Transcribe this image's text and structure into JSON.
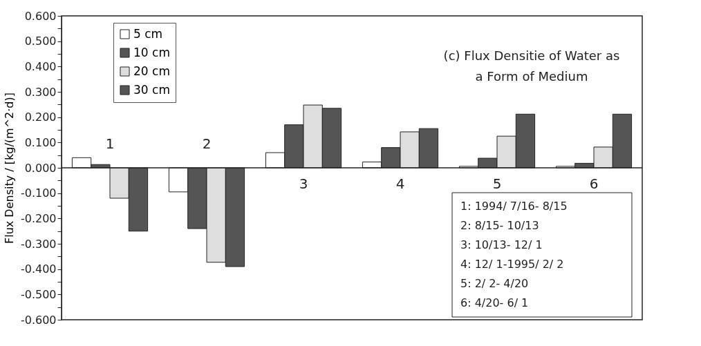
{
  "chart_data": {
    "type": "bar",
    "title": "(c) Flux Densitie of Water as a Form of Medium",
    "ylabel": "Flux Density / [kg/(m^2·d)]",
    "categories": [
      "1",
      "2",
      "3",
      "4",
      "5",
      "6"
    ],
    "series": [
      {
        "name": "5 cm",
        "color": "#ffffff",
        "values": [
          0.04,
          -0.095,
          0.06,
          0.023,
          0.006,
          0.006
        ]
      },
      {
        "name": "10 cm",
        "color": "#555555",
        "values": [
          0.013,
          -0.24,
          0.17,
          0.08,
          0.038,
          0.018
        ]
      },
      {
        "name": "20 cm",
        "color": "#dedede",
        "values": [
          -0.12,
          -0.373,
          0.248,
          0.142,
          0.125,
          0.082
        ]
      },
      {
        "name": "30 cm",
        "color": "#555555",
        "values": [
          -0.25,
          -0.39,
          0.235,
          0.155,
          0.212,
          0.212
        ]
      }
    ],
    "ylim": [
      -0.6,
      0.6
    ],
    "yticks": [
      {
        "value": -0.6,
        "label": "-0.600"
      },
      {
        "value": -0.55,
        "label": null
      },
      {
        "value": -0.5,
        "label": "-0.500"
      },
      {
        "value": -0.45,
        "label": null
      },
      {
        "value": -0.4,
        "label": "-0.400"
      },
      {
        "value": -0.35,
        "label": null
      },
      {
        "value": -0.3,
        "label": "-0.300"
      },
      {
        "value": -0.25,
        "label": null
      },
      {
        "value": -0.2,
        "label": "-0.200"
      },
      {
        "value": -0.15,
        "label": null
      },
      {
        "value": -0.1,
        "label": "-0.100"
      },
      {
        "value": -0.05,
        "label": null
      },
      {
        "value": 0,
        "label": "0.000"
      },
      {
        "value": 0.05,
        "label": null
      },
      {
        "value": 0.1,
        "label": "0.100"
      },
      {
        "value": 0.15,
        "label": null
      },
      {
        "value": 0.2,
        "label": "0.200"
      },
      {
        "value": 0.25,
        "label": null
      },
      {
        "value": 0.3,
        "label": "0.300"
      },
      {
        "value": 0.35,
        "label": null
      },
      {
        "value": 0.4,
        "label": "0.400"
      },
      {
        "value": 0.45,
        "label": null
      },
      {
        "value": 0.5,
        "label": "0.500"
      },
      {
        "value": 0.55,
        "label": null
      },
      {
        "value": 0.6,
        "label": "0.600"
      }
    ],
    "grid": false,
    "legend": "top left",
    "annotations": [
      "1: 1994/ 7/16- 8/15",
      "2: 8/15- 10/13",
      "3: 10/13- 12/ 1",
      "4: 12/ 1-1995/ 2/ 2",
      "5: 2/ 2- 4/20",
      "6: 4/20- 6/ 1"
    ]
  }
}
